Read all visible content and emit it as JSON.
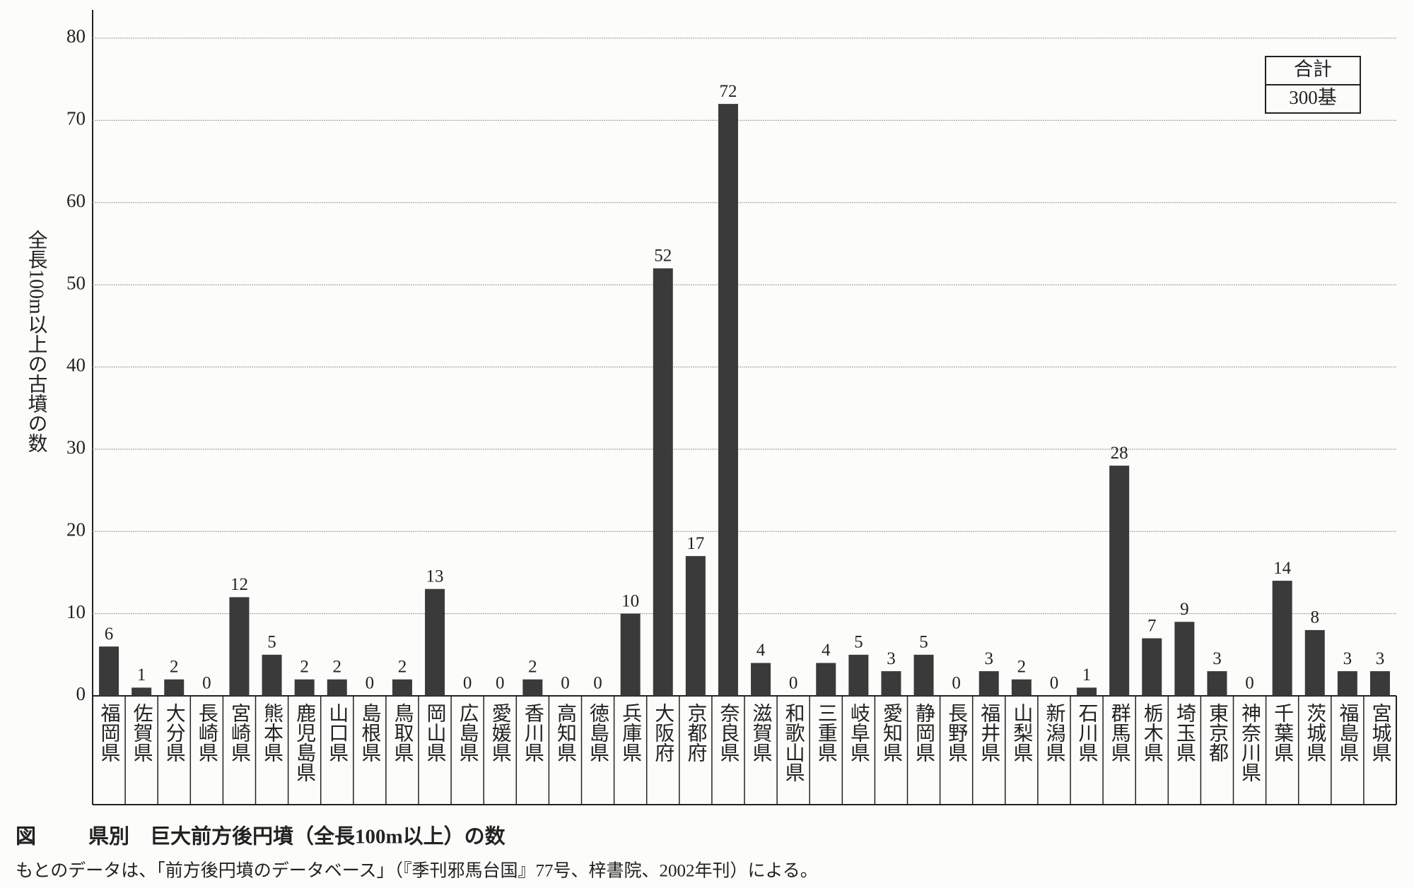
{
  "chart_data": {
    "type": "bar",
    "figure_label": "図",
    "title": "県別　巨大前方後円墳（全長100m以上）の数",
    "note": "もとのデータは、「前方後円墳のデータベース」（『季刊邪馬台国』77号、梓書院、2002年刊）による。",
    "ylabel": "全長100m以上の古墳の数",
    "total_box": {
      "label": "合計",
      "text": "300基"
    },
    "categories": [
      "福岡県",
      "佐賀県",
      "大分県",
      "長崎県",
      "宮崎県",
      "熊本県",
      "鹿児島県",
      "山口県",
      "島根県",
      "鳥取県",
      "岡山県",
      "広島県",
      "愛媛県",
      "香川県",
      "高知県",
      "徳島県",
      "兵庫県",
      "大阪府",
      "京都府",
      "奈良県",
      "滋賀県",
      "和歌山県",
      "三重県",
      "岐阜県",
      "愛知県",
      "静岡県",
      "長野県",
      "福井県",
      "山梨県",
      "新潟県",
      "石川県",
      "群馬県",
      "栃木県",
      "埼玉県",
      "東京都",
      "神奈川県",
      "千葉県",
      "茨城県",
      "福島県",
      "宮城県"
    ],
    "values": [
      6,
      1,
      2,
      0,
      12,
      5,
      2,
      2,
      0,
      2,
      13,
      0,
      0,
      2,
      0,
      0,
      10,
      52,
      17,
      72,
      4,
      0,
      4,
      5,
      3,
      5,
      0,
      3,
      2,
      0,
      1,
      28,
      7,
      9,
      3,
      0,
      14,
      8,
      3,
      3
    ],
    "color": "#3a3a3a",
    "ylim": [
      0,
      80
    ],
    "yticks": [
      0,
      10,
      20,
      30,
      40,
      50,
      60,
      70,
      80
    ],
    "grid": true
  }
}
